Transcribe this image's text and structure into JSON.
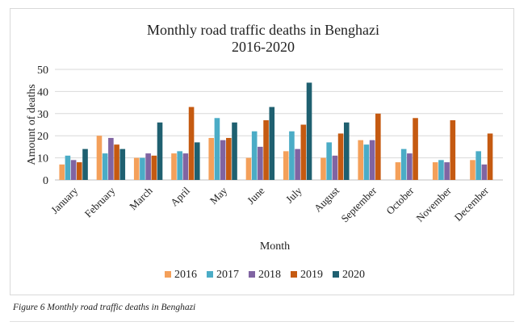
{
  "chart_data": {
    "type": "bar",
    "title": "Monthly road traffic deaths in Benghazi",
    "subtitle": "2016-2020",
    "xlabel": "Month",
    "ylabel": "Amount of deaths",
    "ylim": [
      0,
      50
    ],
    "yticks": [
      "0",
      "10",
      "20",
      "30",
      "40",
      "50"
    ],
    "grid": true,
    "legend_position": "bottom",
    "categories": [
      "January",
      "February",
      "March",
      "April",
      "May",
      "June",
      "July",
      "August",
      "September",
      "October",
      "November",
      "December"
    ],
    "series": [
      {
        "name": "2016",
        "color": "#f4a05a",
        "values": [
          7,
          20,
          10,
          12,
          19,
          10,
          13,
          10,
          18,
          8,
          8,
          9
        ]
      },
      {
        "name": "2017",
        "color": "#4bacc6",
        "values": [
          11,
          12,
          10,
          13,
          28,
          22,
          22,
          17,
          16,
          14,
          9,
          13
        ]
      },
      {
        "name": "2018",
        "color": "#8064a2",
        "values": [
          9,
          19,
          12,
          12,
          18,
          15,
          14,
          11,
          18,
          12,
          8,
          7
        ]
      },
      {
        "name": "2019",
        "color": "#c55a11",
        "values": [
          8,
          16,
          11,
          33,
          19,
          27,
          25,
          21,
          30,
          28,
          27,
          21
        ]
      },
      {
        "name": "2020",
        "color": "#1f6070",
        "values": [
          14,
          14,
          26,
          17,
          26,
          33,
          44,
          26,
          null,
          null,
          null,
          null
        ]
      }
    ]
  },
  "caption": "Figure 6 Monthly road traffic deaths in Benghazi"
}
